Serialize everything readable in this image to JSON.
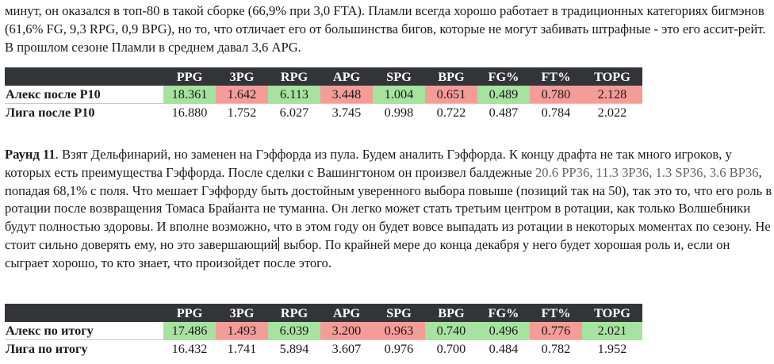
{
  "paragraph1": {
    "text": "минут, он оказался в топ-80 в такой сборке (66,9% при 3,0 FTA). Пламли всегда хорошо работает в традиционных категориях бигмэнов (61,6% FG, 9,3 RPG, 0,9 BPG), но то, что отличает его от большинства бигов, которые не могут забивать штрафные - это его ассит-рейт. В прошлом сезоне Пламли в среднем давал 3,6 APG."
  },
  "table1": {
    "headers": [
      "PPG",
      "3PG",
      "RPG",
      "APG",
      "SPG",
      "BPG",
      "FG%",
      "FT%",
      "TOPG"
    ],
    "rows": [
      {
        "label": "Алекс после Р10",
        "cells": [
          {
            "value": "18.361",
            "status": "good"
          },
          {
            "value": "1.642",
            "status": "bad"
          },
          {
            "value": "6.113",
            "status": "good"
          },
          {
            "value": "3.448",
            "status": "bad"
          },
          {
            "value": "1.004",
            "status": "good"
          },
          {
            "value": "0.651",
            "status": "bad"
          },
          {
            "value": "0.489",
            "status": "good"
          },
          {
            "value": "0.780",
            "status": "bad"
          },
          {
            "value": "2.128",
            "status": "bad"
          }
        ]
      },
      {
        "label": "Лига после Р10",
        "cells": [
          {
            "value": "16.880",
            "status": "plain"
          },
          {
            "value": "1.752",
            "status": "plain"
          },
          {
            "value": "6.027",
            "status": "plain"
          },
          {
            "value": "3.745",
            "status": "plain"
          },
          {
            "value": "0.998",
            "status": "plain"
          },
          {
            "value": "0.722",
            "status": "plain"
          },
          {
            "value": "0.487",
            "status": "plain"
          },
          {
            "value": "0.784",
            "status": "plain"
          },
          {
            "value": "2.022",
            "status": "plain"
          }
        ]
      }
    ]
  },
  "paragraph2": {
    "bold_lead": "Раунд 11",
    "text_a": ". Взят Дельфинарий, но заменен на Гэффорда из пула. Будем аналить Гэффорда. К концу драфта не так много игроков, у которых есть преимущества Гэффорда. После сделки с Вашингтоном он произвел балдежные ",
    "stats": "20.6 PP36, 11.3 3P36, 1.3 SP36, 3.6 BP36",
    "text_b": ", попадая 68,1% с поля. Что мешает Гэффорду быть достойным уверенного выбора повыше (позиций так на 50), так это то, что его роль в ротации после возвращения Томаса Брайанта не туманна. Он легко может стать третьим центром в ротации, как только Волшебники будут полностью здоровы. И вполне возможно, что в этом году он будет вовсе выпадать из ротации в некоторых моментах по сезону. Не стоит сильно доверять ему, но это завершающий",
    "text_c": " выбор. По крайней мере до конца декабря у него будет хорошая роль и, если он сыграет хорошо, то кто знает, что произойдет после этого."
  },
  "table2": {
    "headers": [
      "PPG",
      "3PG",
      "RPG",
      "APG",
      "SPG",
      "BPG",
      "FG%",
      "FT%",
      "TOPG"
    ],
    "rows": [
      {
        "label": "Алекс по итогу",
        "cells": [
          {
            "value": "17.486",
            "status": "good"
          },
          {
            "value": "1.493",
            "status": "bad"
          },
          {
            "value": "6.039",
            "status": "good"
          },
          {
            "value": "3.200",
            "status": "bad"
          },
          {
            "value": "0.963",
            "status": "bad"
          },
          {
            "value": "0.740",
            "status": "good"
          },
          {
            "value": "0.496",
            "status": "good"
          },
          {
            "value": "0.776",
            "status": "bad"
          },
          {
            "value": "2.021",
            "status": "good"
          }
        ]
      },
      {
        "label": "Лига по итогу",
        "cells": [
          {
            "value": "16.432",
            "status": "plain"
          },
          {
            "value": "1.741",
            "status": "plain"
          },
          {
            "value": "5.894",
            "status": "plain"
          },
          {
            "value": "3.607",
            "status": "plain"
          },
          {
            "value": "0.976",
            "status": "plain"
          },
          {
            "value": "0.700",
            "status": "plain"
          },
          {
            "value": "0.484",
            "status": "plain"
          },
          {
            "value": "0.782",
            "status": "plain"
          },
          {
            "value": "1.952",
            "status": "plain"
          }
        ]
      }
    ]
  },
  "colors": {
    "header_bg": "#333438",
    "good": "#a6e3a0",
    "bad": "#f49c98",
    "stats_text": "#666666"
  }
}
